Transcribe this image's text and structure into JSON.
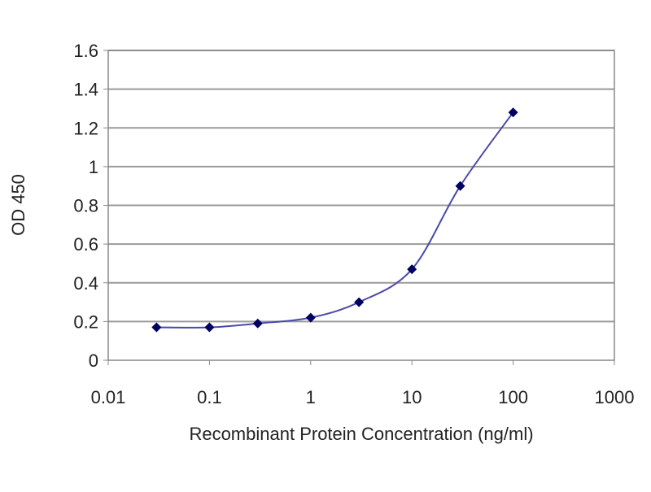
{
  "chart_data": {
    "type": "line",
    "title": "",
    "xlabel": "Recombinant Protein Concentration (ng/ml)",
    "ylabel": "OD 450",
    "x_scale": "log",
    "xlim": [
      0.01,
      1000
    ],
    "ylim": [
      0,
      1.6
    ],
    "x_ticks": [
      "0.01",
      "0.1",
      "1",
      "10",
      "100",
      "1000"
    ],
    "y_ticks": [
      "0",
      "0.2",
      "0.4",
      "0.6",
      "0.8",
      "1",
      "1.2",
      "1.4",
      "1.6"
    ],
    "grid": "horizontal",
    "legend": "none",
    "series": [
      {
        "x": [
          0.03,
          0.1,
          0.3,
          1,
          3,
          10,
          30,
          100
        ],
        "y": [
          0.17,
          0.17,
          0.19,
          0.22,
          0.3,
          0.47,
          0.9,
          1.28
        ],
        "line_color": "#4a4aa8",
        "marker_color": "#000060",
        "marker": "diamond"
      }
    ]
  }
}
